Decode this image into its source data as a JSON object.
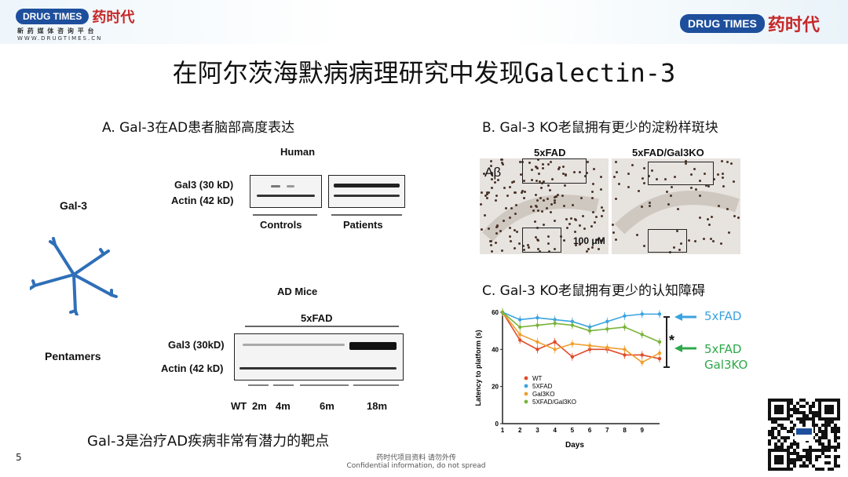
{
  "header": {
    "left_logo_pill": "DRUG TIMES",
    "left_logo_cn": "药时代",
    "left_tagline": "新 药 媒 体 咨 询 平 台",
    "left_url": "WWW.DRUGTIMES.CN",
    "right_logo_pill": "DRUG TIMES",
    "right_logo_cn": "药时代"
  },
  "title": "在阿尔茨海默病病理研究中发现Galectin-3",
  "left_panel": {
    "gal3_label": "Gal-3",
    "pentamers_label": "Pentamers"
  },
  "panel_a": {
    "caption": "A. Gal-3在AD患者脑部高度表达",
    "human_title": "Human",
    "row1": "Gal3 (30 kD)",
    "row2": "Actin (42 kD)",
    "group1": "Controls",
    "group2": "Patients",
    "mice_title": "AD Mice",
    "mice_group": "5xFAD",
    "mice_row1": "Gal3 (30kD)",
    "mice_row2": "Actin (42 kD)",
    "lanes": [
      "WT",
      "2m",
      "4m",
      "6m",
      "18m"
    ]
  },
  "panel_b": {
    "caption": "B. Gal-3 KO老鼠拥有更少的淀粉样斑块",
    "left_title": "5xFAD",
    "right_title": "5xFAD/Gal3KO",
    "stain": "Aβ",
    "scale": "100 μM"
  },
  "panel_c": {
    "caption": "C. Gal-3 KO老鼠拥有更少的认知障碍",
    "annot_5xfad": "5xFAD",
    "annot_ko_line1": "5xFAD",
    "annot_ko_line2": "Gal3KO",
    "star": "*"
  },
  "conclusion": "Gal-3是治疗AD疾病非常有潜力的靶点",
  "footer": {
    "page_number": "5",
    "line1": "药时代项目资料 请勿外传",
    "line2": "Confidential information, do not spread"
  },
  "chart_data": {
    "type": "line",
    "ylabel": "Latency to platform (s)",
    "xlabel": "Days",
    "x": [
      1,
      2,
      3,
      4,
      5,
      6,
      7,
      8,
      9,
      10
    ],
    "xticks": [
      "1",
      "2",
      "3",
      "4",
      "5",
      "6",
      "7",
      "8",
      "9"
    ],
    "yticks": [
      "0",
      "20",
      "40",
      "60"
    ],
    "ylim": [
      0,
      60
    ],
    "series": [
      {
        "name": "WT",
        "color": "#e04b2a",
        "values": [
          60,
          45,
          40,
          44,
          36,
          40,
          40,
          37,
          37,
          35
        ]
      },
      {
        "name": "5XFAD",
        "color": "#3aa3df",
        "values": [
          60,
          56,
          57,
          56,
          55,
          52,
          55,
          58,
          59,
          59
        ]
      },
      {
        "name": "Gal3KO",
        "color": "#f0a030",
        "values": [
          60,
          48,
          44,
          40,
          43,
          42,
          41,
          40,
          33,
          38
        ]
      },
      {
        "name": "5XFAD/Gal3KO",
        "color": "#7ab33a",
        "values": [
          60,
          52,
          53,
          54,
          53,
          50,
          51,
          52,
          48,
          44
        ]
      }
    ]
  }
}
